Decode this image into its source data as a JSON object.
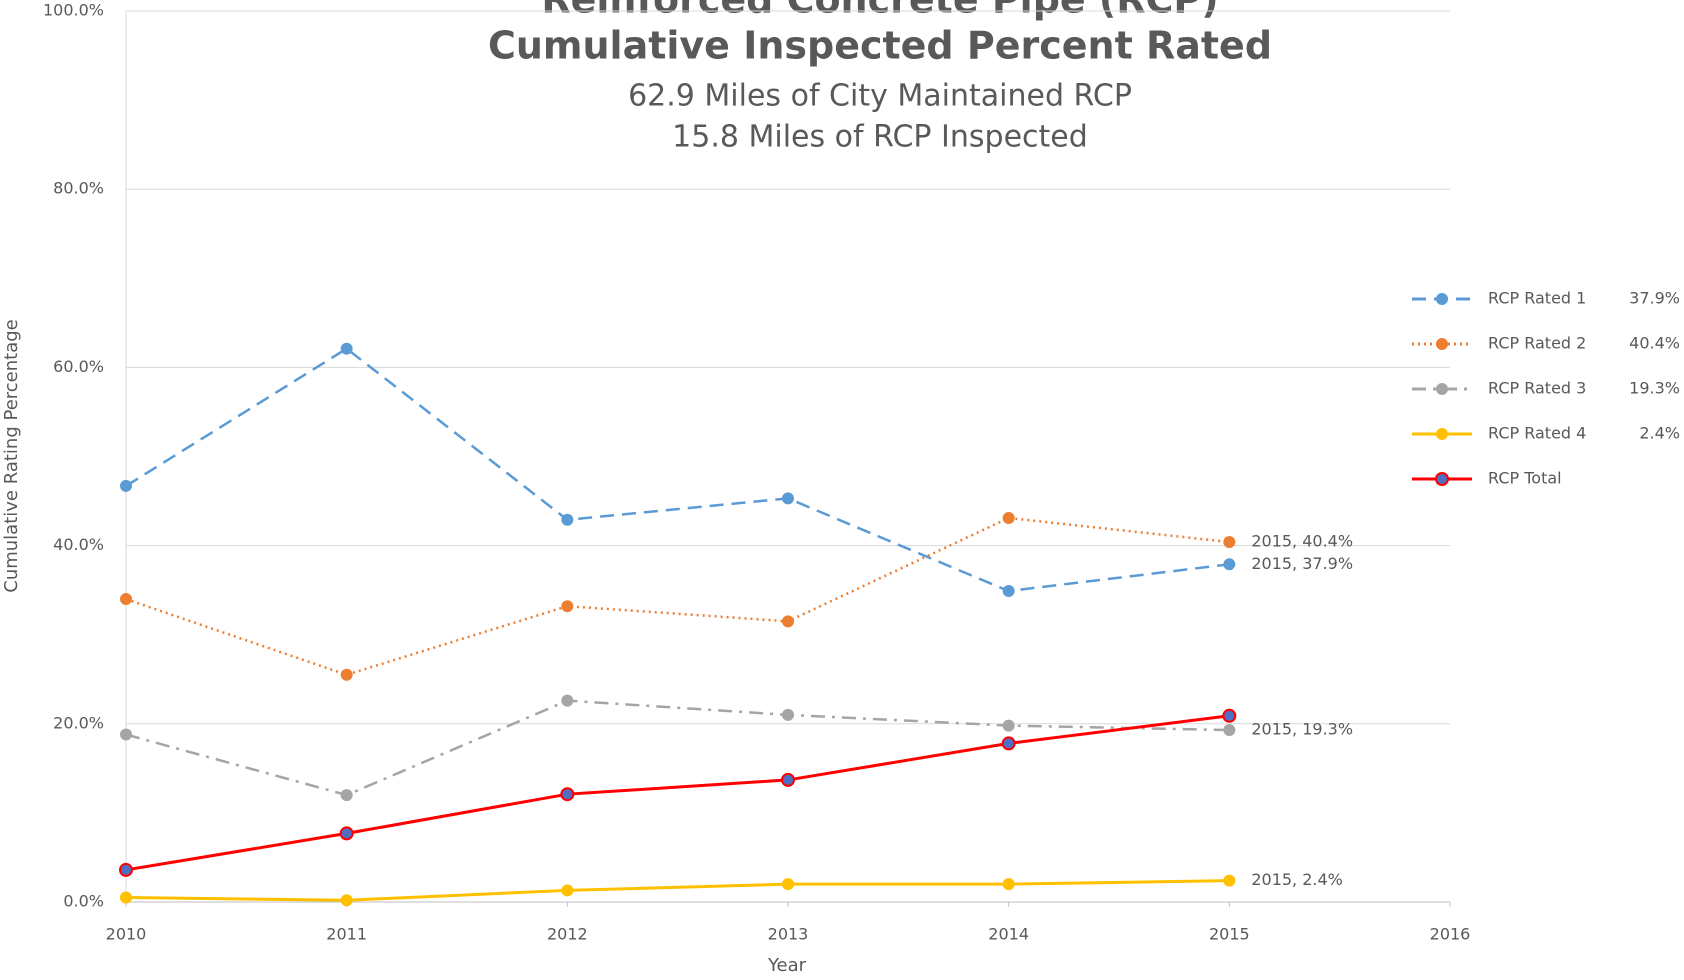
{
  "chart_data": {
    "type": "line",
    "title": [
      "Reinforced Concrete Pipe (RCP)",
      "Cumulative Inspected Percent Rated"
    ],
    "subtitle": [
      "62.9 Miles of City Maintained RCP",
      "15.8 Miles of RCP Inspected"
    ],
    "x_label": "Year",
    "y_label": "Cumulative Rating Percentage",
    "x": [
      2010,
      2011,
      2012,
      2013,
      2014,
      2015
    ],
    "xlim": [
      2010,
      2016
    ],
    "xticks": [
      2010,
      2011,
      2012,
      2013,
      2014,
      2015,
      2016
    ],
    "ylim": [
      0,
      100
    ],
    "yticks": [
      {
        "value": 0,
        "label": "0.0%"
      },
      {
        "value": 20,
        "label": "20.0%"
      },
      {
        "value": 40,
        "label": "40.0%"
      },
      {
        "value": 60,
        "label": "60.0%"
      },
      {
        "value": 80,
        "label": "80.0%"
      },
      {
        "value": 100,
        "label": "100.0%"
      }
    ],
    "grid": true,
    "legend": "right",
    "series": [
      {
        "name": "RCP Rated 1",
        "legend_label": "37.9%",
        "color": "#5b9bd5",
        "dash": "dashed",
        "values": [
          46.7,
          62.1,
          42.9,
          45.3,
          34.9,
          37.9
        ],
        "value_labels": [
          null,
          null,
          null,
          null,
          null,
          "2015, 37.9%"
        ]
      },
      {
        "name": "RCP Rated 2",
        "legend_label": "40.4%",
        "color": "#ed7d31",
        "dash": "dotted",
        "values": [
          34.0,
          25.5,
          33.2,
          31.5,
          43.1,
          40.4
        ],
        "value_labels": [
          null,
          null,
          null,
          null,
          null,
          "2015, 40.4%"
        ]
      },
      {
        "name": "RCP Rated 3",
        "legend_label": "19.3%",
        "color": "#a5a5a5",
        "dash": "dashdot",
        "values": [
          18.8,
          12.0,
          22.6,
          21.0,
          19.8,
          19.3
        ],
        "value_labels": [
          null,
          null,
          null,
          null,
          null,
          "2015, 19.3%"
        ]
      },
      {
        "name": "RCP Rated 4",
        "legend_label": "2.4%",
        "color": "#ffc000",
        "dash": "solid",
        "values": [
          0.5,
          0.2,
          1.3,
          2.0,
          2.0,
          2.4
        ],
        "value_labels": [
          null,
          null,
          null,
          null,
          null,
          "2015, 2.4%"
        ]
      },
      {
        "name": "RCP Total",
        "color": "#ff0000",
        "marker_color": "#4f6fc4",
        "dash": "solid",
        "values": [
          3.6,
          7.7,
          12.1,
          13.7,
          17.8,
          20.9
        ]
      }
    ]
  }
}
